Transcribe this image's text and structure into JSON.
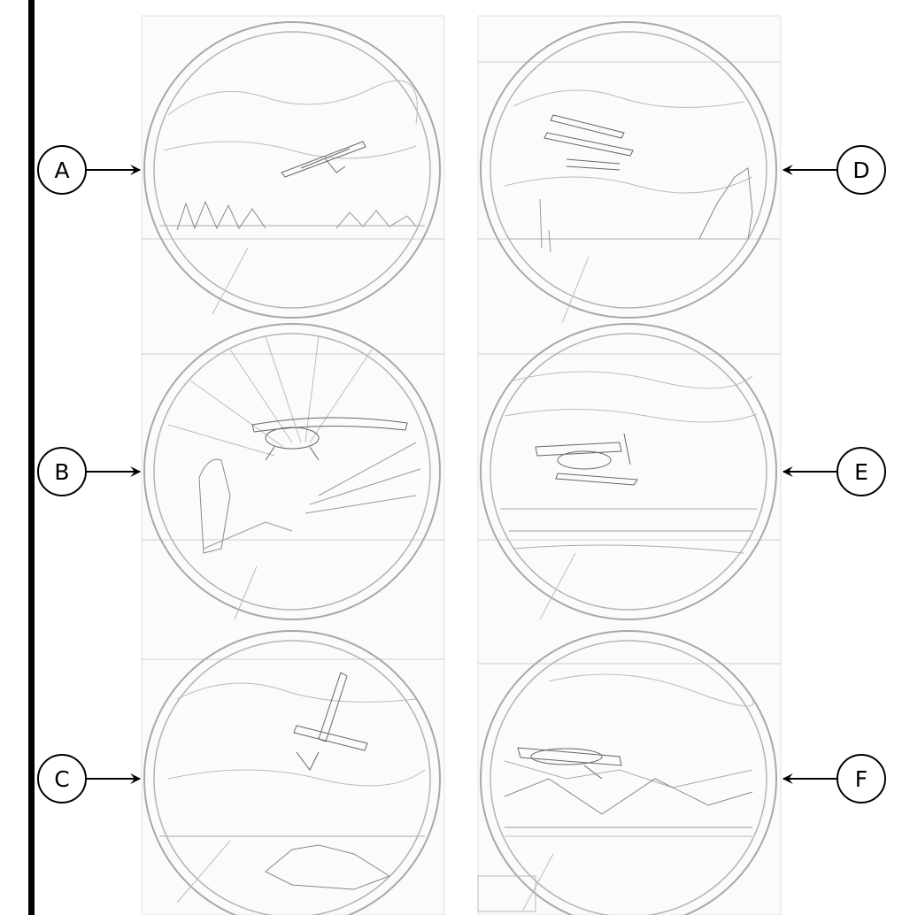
{
  "callouts": {
    "left": [
      {
        "id": "A",
        "label": "A"
      },
      {
        "id": "B",
        "label": "B"
      },
      {
        "id": "C",
        "label": "C"
      }
    ],
    "right": [
      {
        "id": "D",
        "label": "D"
      },
      {
        "id": "E",
        "label": "E"
      },
      {
        "id": "F",
        "label": "F"
      }
    ]
  },
  "medallions": [
    {
      "id": "A",
      "icon": "biplane-over-forest-icon"
    },
    {
      "id": "B",
      "icon": "monoplane-over-sunburst-icon"
    },
    {
      "id": "C",
      "icon": "monoplane-over-fields-icon"
    },
    {
      "id": "D",
      "icon": "floatplane-biplane-over-lake-icon"
    },
    {
      "id": "E",
      "icon": "floatplane-over-river-icon"
    },
    {
      "id": "F",
      "icon": "airliner-over-mountains-icon"
    }
  ],
  "colors": {
    "line": "#000000",
    "sketch": "#9a9a9a",
    "background": "#ffffff"
  }
}
